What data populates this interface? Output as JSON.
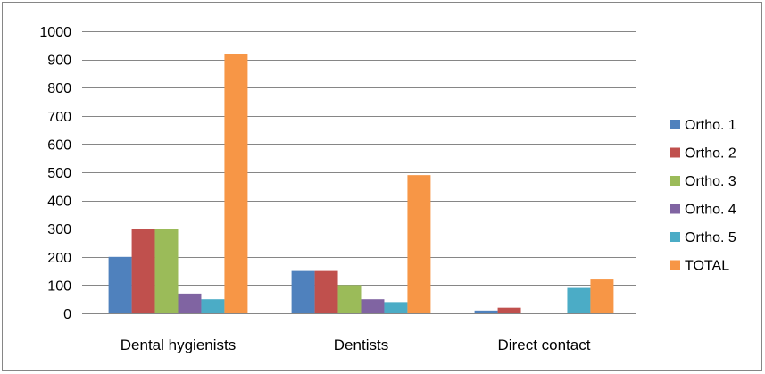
{
  "chart_data": {
    "type": "bar",
    "categories": [
      "Dental hygienists",
      "Dentists",
      "Direct contact"
    ],
    "series": [
      {
        "name": "Ortho. 1",
        "color": "#4F81BD",
        "values": [
          200,
          150,
          10
        ]
      },
      {
        "name": "Ortho. 2",
        "color": "#C0504D",
        "values": [
          300,
          150,
          20
        ]
      },
      {
        "name": "Ortho. 3",
        "color": "#9BBB59",
        "values": [
          300,
          100,
          0
        ]
      },
      {
        "name": "Ortho. 4",
        "color": "#8064A2",
        "values": [
          70,
          50,
          0
        ]
      },
      {
        "name": "Ortho. 5",
        "color": "#4BACC6",
        "values": [
          50,
          40,
          90
        ]
      },
      {
        "name": "TOTAL",
        "color": "#F79646",
        "values": [
          920,
          490,
          120
        ]
      }
    ],
    "ylim": [
      0,
      1000
    ],
    "yticks": [
      "0",
      "100",
      "200",
      "300",
      "400",
      "500",
      "600",
      "700",
      "800",
      "900",
      "1000"
    ],
    "grid": true,
    "legend_position": "right",
    "title": "",
    "xlabel": "",
    "ylabel": ""
  }
}
